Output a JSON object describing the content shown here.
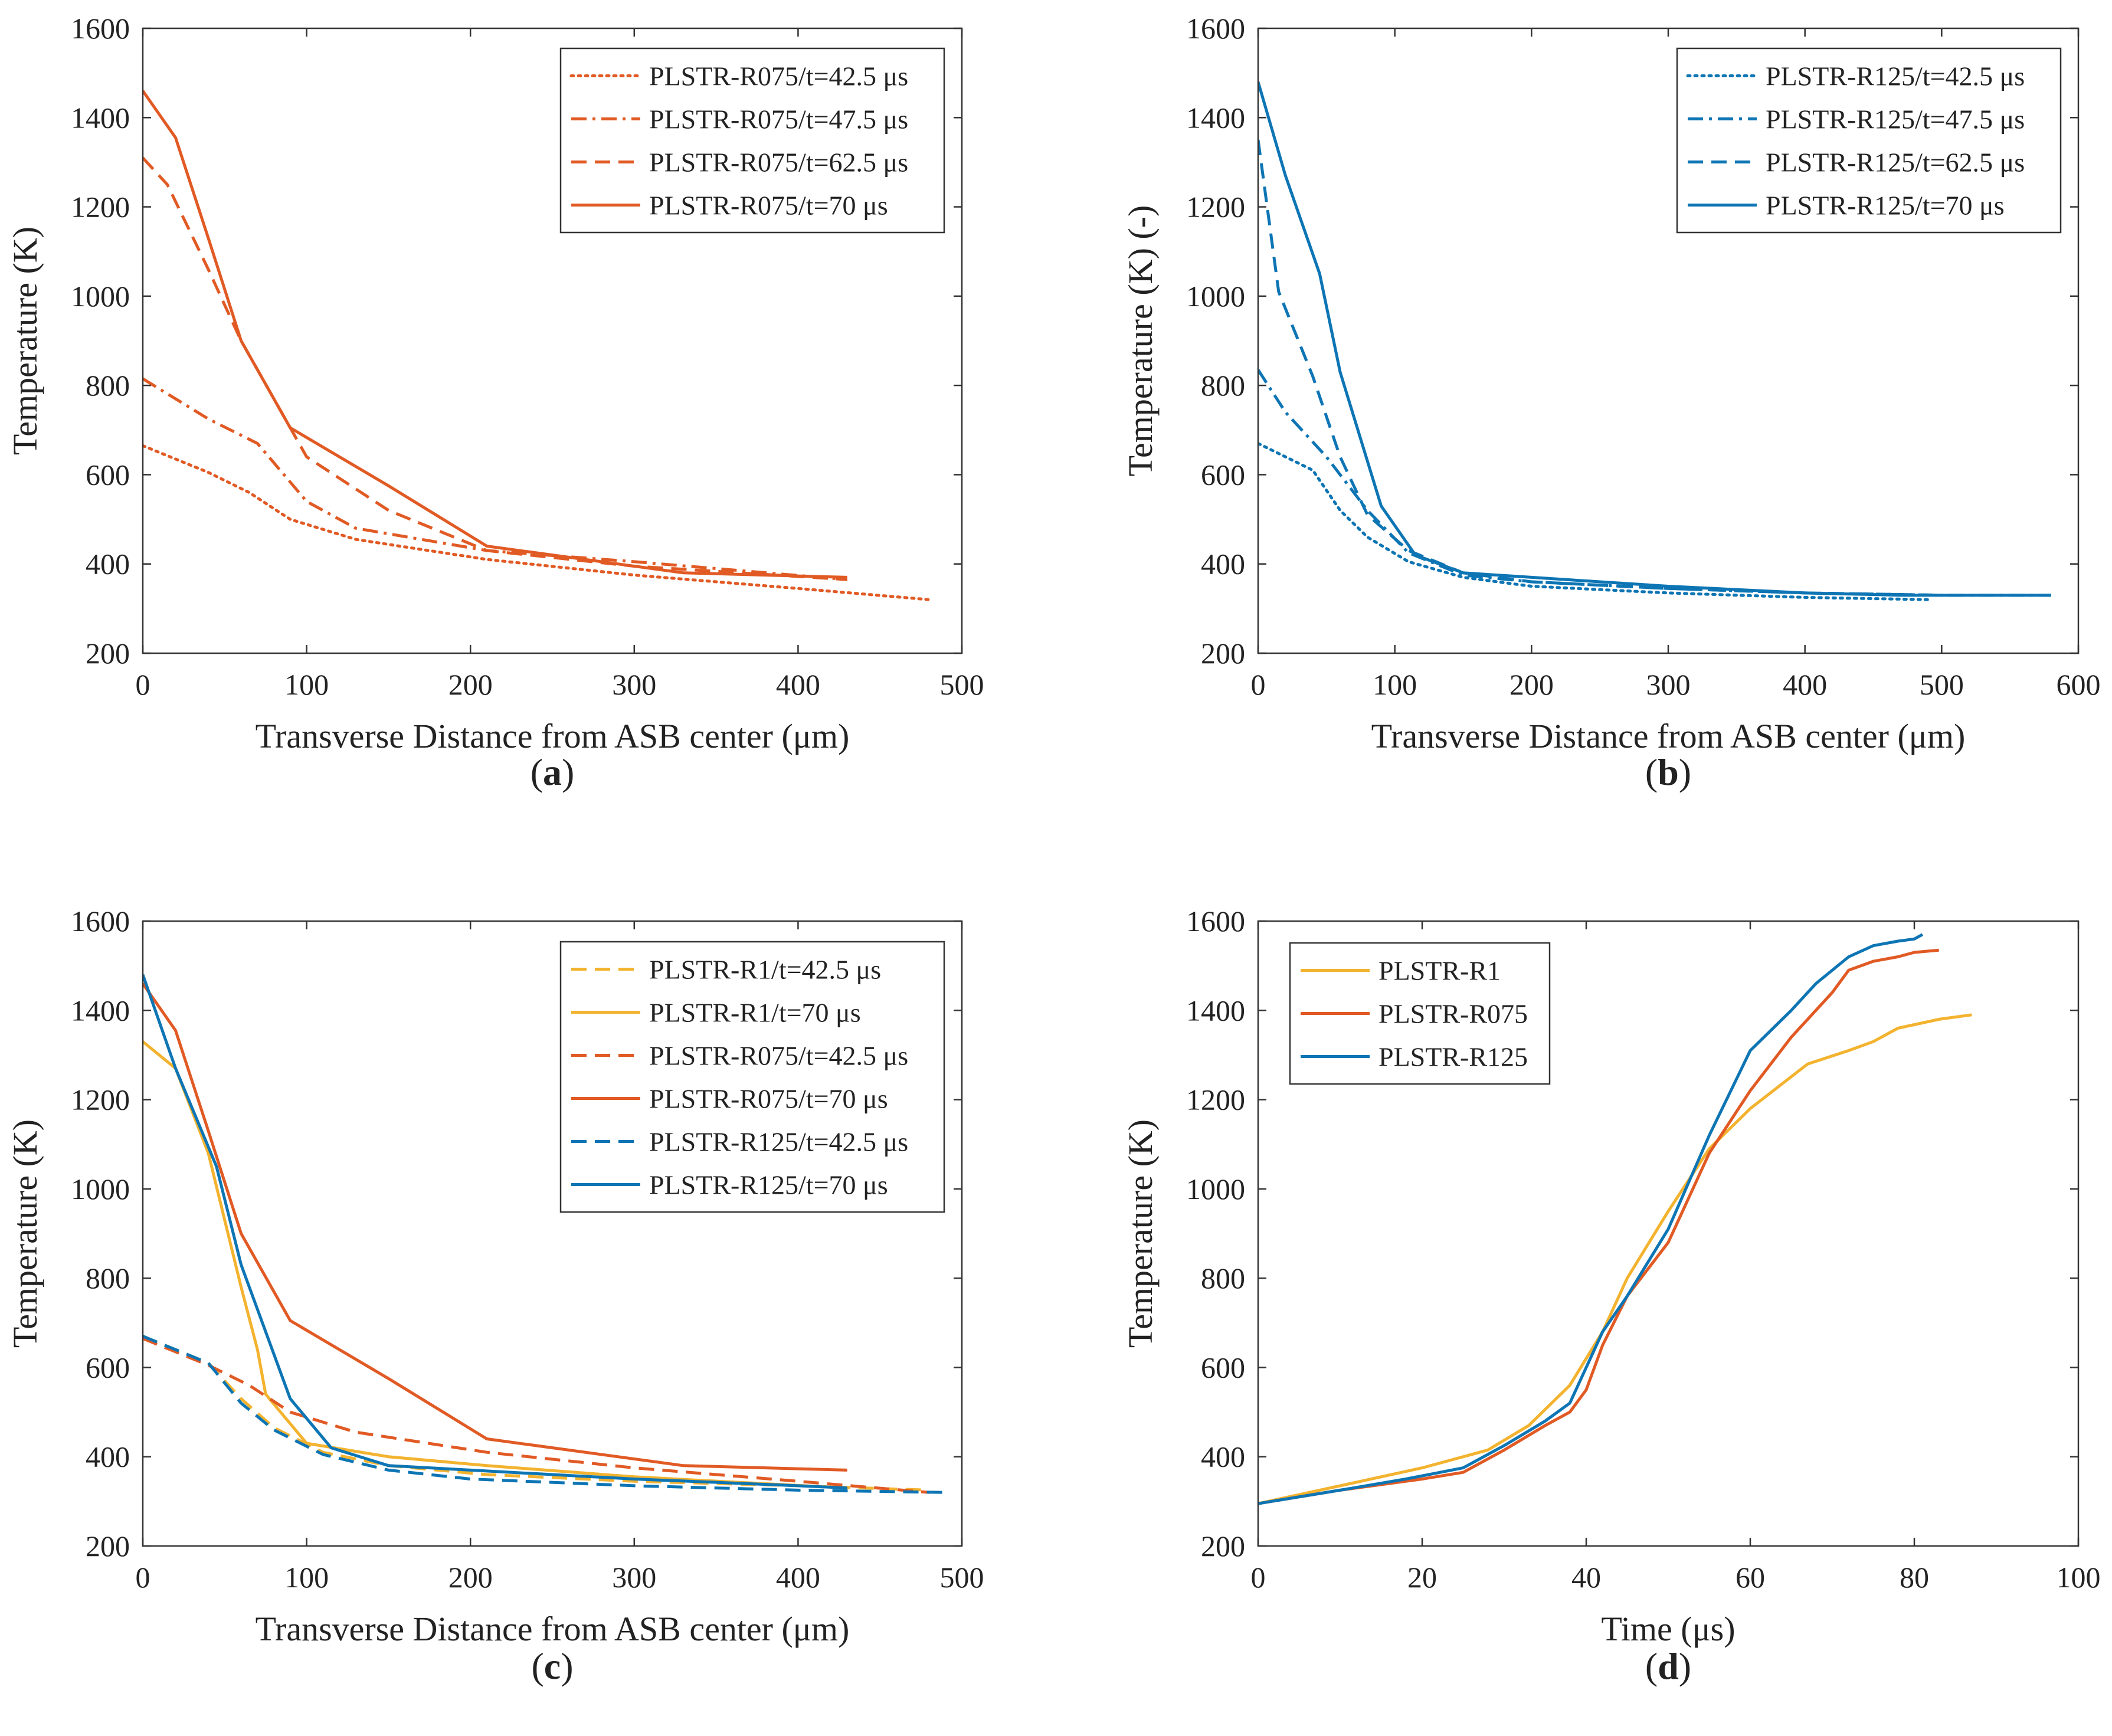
{
  "colors": {
    "orange": "#e15a24",
    "blue": "#0d75b4",
    "yellow": "#f3b32f",
    "axis": "#333333"
  },
  "chart_data": [
    {
      "id": "a",
      "type": "line",
      "panel_label": "a",
      "xlabel": "Transverse Distance from ASB center (μm)",
      "ylabel": "Temperature (K)",
      "xlim": [
        0,
        500
      ],
      "ylim": [
        200,
        1600
      ],
      "xticks": [
        0,
        100,
        200,
        300,
        400,
        500
      ],
      "yticks": [
        200,
        400,
        600,
        800,
        1000,
        1200,
        1400,
        1600
      ],
      "legend_position": "top-right",
      "series": [
        {
          "name": "PLSTR-R075/t=42.5 μs",
          "color": "#e15a24",
          "style": "dotted",
          "x": [
            0,
            40,
            65,
            90,
            130,
            210,
            300,
            400,
            480
          ],
          "y": [
            665,
            605,
            560,
            500,
            455,
            410,
            375,
            345,
            320
          ]
        },
        {
          "name": "PLSTR-R075/t=47.5 μs",
          "color": "#e15a24",
          "style": "dashdot",
          "x": [
            0,
            40,
            70,
            100,
            130,
            210,
            300,
            430
          ],
          "y": [
            815,
            725,
            670,
            540,
            480,
            430,
            405,
            365
          ]
        },
        {
          "name": "PLSTR-R075/t=62.5 μs",
          "color": "#e15a24",
          "style": "dashed",
          "x": [
            0,
            15,
            40,
            60,
            80,
            100,
            150,
            210,
            300,
            430
          ],
          "y": [
            1310,
            1250,
            1060,
            900,
            770,
            640,
            520,
            430,
            395,
            365
          ]
        },
        {
          "name": "PLSTR-R075/t=70 μs",
          "color": "#e15a24",
          "style": "solid",
          "x": [
            0,
            20,
            40,
            60,
            90,
            150,
            210,
            330,
            430
          ],
          "y": [
            1460,
            1355,
            1130,
            900,
            705,
            575,
            440,
            380,
            370
          ]
        }
      ]
    },
    {
      "id": "b",
      "type": "line",
      "panel_label": "b",
      "xlabel": "Transverse Distance from ASB center (μm)",
      "ylabel": "Temperature (K) (-)",
      "xlim": [
        0,
        600
      ],
      "ylim": [
        200,
        1600
      ],
      "xticks": [
        0,
        100,
        200,
        300,
        400,
        500,
        600
      ],
      "yticks": [
        200,
        400,
        600,
        800,
        1000,
        1200,
        1400,
        1600
      ],
      "legend_position": "top-right",
      "series": [
        {
          "name": "PLSTR-R125/t=42.5 μs",
          "color": "#0d75b4",
          "style": "dotted",
          "x": [
            0,
            40,
            60,
            80,
            110,
            150,
            200,
            300,
            400,
            490
          ],
          "y": [
            670,
            610,
            520,
            460,
            405,
            370,
            350,
            335,
            325,
            320
          ]
        },
        {
          "name": "PLSTR-R125/t=47.5 μs",
          "color": "#0d75b4",
          "style": "dashdot",
          "x": [
            0,
            20,
            50,
            80,
            110,
            150,
            200,
            300,
            400,
            500,
            580
          ],
          "y": [
            835,
            740,
            640,
            520,
            425,
            375,
            360,
            345,
            335,
            330,
            330
          ]
        },
        {
          "name": "PLSTR-R125/t=62.5 μs",
          "color": "#0d75b4",
          "style": "dashed",
          "x": [
            0,
            15,
            40,
            60,
            80,
            110,
            150,
            200,
            300,
            400,
            500
          ],
          "y": [
            1350,
            1010,
            820,
            640,
            510,
            430,
            380,
            360,
            345,
            335,
            330
          ]
        },
        {
          "name": "PLSTR-R125/t=70 μs",
          "color": "#0d75b4",
          "style": "solid",
          "x": [
            0,
            20,
            45,
            60,
            90,
            115,
            150,
            200,
            300,
            400,
            470,
            580
          ],
          "y": [
            1480,
            1270,
            1050,
            830,
            530,
            420,
            380,
            370,
            350,
            335,
            330,
            330
          ]
        }
      ]
    },
    {
      "id": "c",
      "type": "line",
      "panel_label": "c",
      "xlabel": "Transverse Distance from ASB center (μm)",
      "ylabel": "Temperature (K)",
      "xlim": [
        0,
        500
      ],
      "ylim": [
        200,
        1600
      ],
      "xticks": [
        0,
        100,
        200,
        300,
        400,
        500
      ],
      "yticks": [
        200,
        400,
        600,
        800,
        1000,
        1200,
        1400,
        1600
      ],
      "legend_position": "top-right",
      "series": [
        {
          "name": "PLSTR-R1/t=42.5 μs",
          "color": "#f3b32f",
          "style": "dashed",
          "x": [
            0,
            40,
            60,
            80,
            110,
            150,
            210,
            300,
            400,
            480
          ],
          "y": [
            670,
            610,
            530,
            465,
            410,
            380,
            360,
            345,
            335,
            325
          ]
        },
        {
          "name": "PLSTR-R1/t=70 μs",
          "color": "#f3b32f",
          "style": "solid",
          "x": [
            0,
            20,
            40,
            60,
            70,
            75,
            100,
            150,
            210,
            300,
            430
          ],
          "y": [
            1330,
            1270,
            1080,
            780,
            640,
            540,
            430,
            400,
            380,
            355,
            330
          ]
        },
        {
          "name": "PLSTR-R075/t=42.5 μs",
          "color": "#e15a24",
          "style": "dashed",
          "x": [
            0,
            40,
            65,
            90,
            130,
            210,
            300,
            400,
            480
          ],
          "y": [
            665,
            605,
            560,
            500,
            455,
            410,
            375,
            345,
            320
          ]
        },
        {
          "name": "PLSTR-R075/t=70 μs",
          "color": "#e15a24",
          "style": "solid",
          "x": [
            0,
            20,
            40,
            60,
            90,
            150,
            210,
            330,
            430
          ],
          "y": [
            1460,
            1355,
            1130,
            900,
            705,
            575,
            440,
            380,
            370
          ]
        },
        {
          "name": "PLSTR-R125/t=42.5 μs",
          "color": "#0d75b4",
          "style": "dashed",
          "x": [
            0,
            40,
            60,
            80,
            110,
            150,
            200,
            300,
            400,
            490
          ],
          "y": [
            670,
            610,
            520,
            460,
            405,
            370,
            350,
            335,
            325,
            320
          ]
        },
        {
          "name": "PLSTR-R125/t=70 μs",
          "color": "#0d75b4",
          "style": "solid",
          "x": [
            0,
            20,
            45,
            60,
            90,
            115,
            150,
            200,
            300,
            400,
            430
          ],
          "y": [
            1480,
            1270,
            1050,
            830,
            530,
            420,
            380,
            370,
            350,
            335,
            330
          ]
        }
      ]
    },
    {
      "id": "d",
      "type": "line",
      "panel_label": "d",
      "xlabel": "Time (μs)",
      "ylabel": "Temperature (K)",
      "xlim": [
        0,
        100
      ],
      "ylim": [
        200,
        1600
      ],
      "xticks": [
        0,
        20,
        40,
        60,
        80,
        100
      ],
      "yticks": [
        200,
        400,
        600,
        800,
        1000,
        1200,
        1400,
        1600
      ],
      "legend_position": "top-left",
      "series": [
        {
          "name": "PLSTR-R1",
          "color": "#f3b32f",
          "style": "solid",
          "x": [
            0,
            10,
            20,
            28,
            33,
            38,
            42,
            45,
            50,
            55,
            60,
            67,
            72,
            75,
            78,
            83,
            87
          ],
          "y": [
            295,
            335,
            375,
            415,
            470,
            560,
            680,
            800,
            950,
            1090,
            1180,
            1280,
            1310,
            1330,
            1360,
            1380,
            1390
          ]
        },
        {
          "name": "PLSTR-R075",
          "color": "#e15a24",
          "style": "solid",
          "x": [
            0,
            10,
            20,
            25,
            30,
            35,
            38,
            40,
            42,
            45,
            50,
            55,
            60,
            65,
            70,
            72,
            75,
            78,
            80,
            83
          ],
          "y": [
            295,
            325,
            350,
            365,
            415,
            470,
            500,
            550,
            650,
            760,
            880,
            1080,
            1220,
            1340,
            1440,
            1490,
            1510,
            1520,
            1530,
            1535
          ]
        },
        {
          "name": "PLSTR-R125",
          "color": "#0d75b4",
          "style": "solid",
          "x": [
            0,
            10,
            18,
            25,
            30,
            35,
            38,
            40,
            42,
            45,
            50,
            55,
            60,
            65,
            68,
            72,
            75,
            78,
            80,
            81
          ],
          "y": [
            295,
            325,
            350,
            375,
            425,
            480,
            520,
            600,
            680,
            760,
            910,
            1120,
            1310,
            1400,
            1460,
            1520,
            1545,
            1555,
            1560,
            1570
          ]
        }
      ]
    }
  ]
}
